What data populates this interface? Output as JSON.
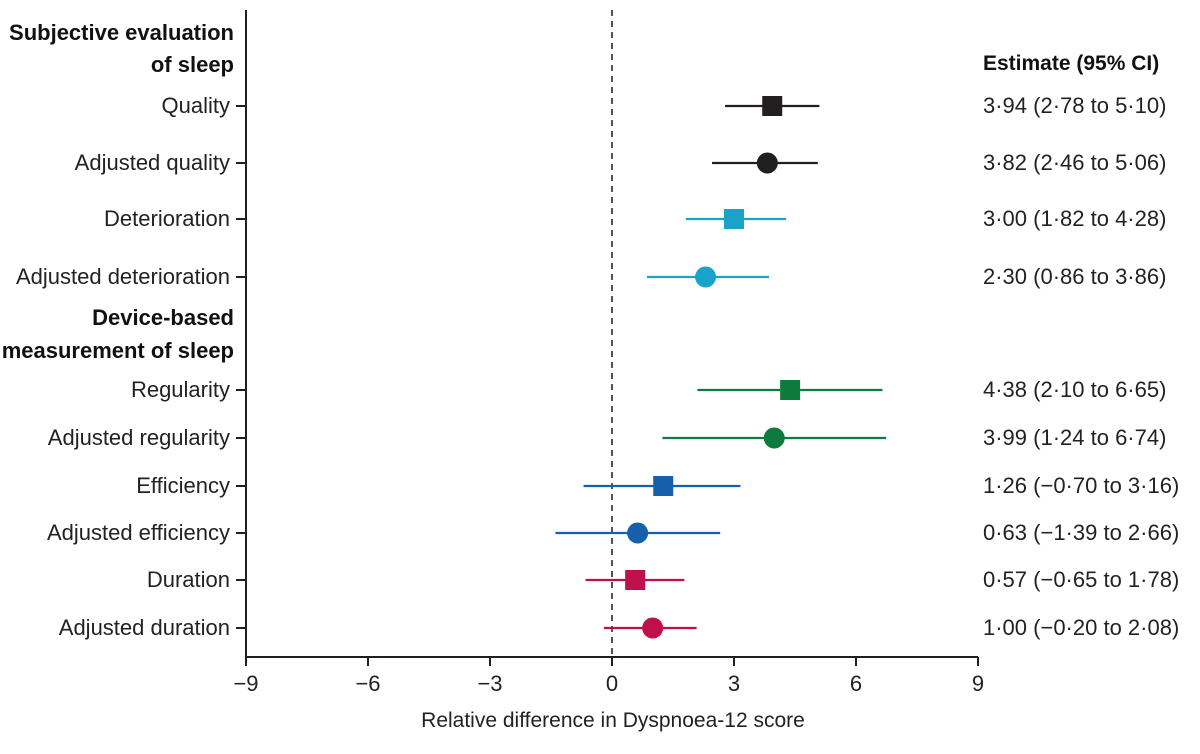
{
  "chart_data": {
    "type": "forest",
    "xlabel": "Relative difference in Dyspnoea-12 score",
    "xlim": [
      -9,
      9
    ],
    "xticks": [
      -9,
      -6,
      -3,
      0,
      3,
      6,
      9
    ],
    "xtick_labels": [
      "−9",
      "−6",
      "−3",
      "0",
      "3",
      "6",
      "9"
    ],
    "reference_line": 0,
    "estimate_header": "Estimate (95% CI)",
    "groups": [
      {
        "title_lines": [
          "Subjective evaluation",
          "of sleep"
        ],
        "rows": [
          {
            "label": "Quality",
            "estimate": 3.94,
            "lower": 2.78,
            "upper": 5.1,
            "ci_text": "3·94 (2·78 to 5·10)",
            "marker": "square",
            "color": "#231f20"
          },
          {
            "label": "Adjusted quality",
            "estimate": 3.82,
            "lower": 2.46,
            "upper": 5.06,
            "ci_text": "3·82 (2·46 to 5·06)",
            "marker": "circle",
            "color": "#231f20"
          },
          {
            "label": "Deterioration",
            "estimate": 3.0,
            "lower": 1.82,
            "upper": 4.28,
            "ci_text": "3·00 (1·82 to 4·28)",
            "marker": "square",
            "color": "#1aa3c9"
          },
          {
            "label": "Adjusted deterioration",
            "estimate": 2.3,
            "lower": 0.86,
            "upper": 3.86,
            "ci_text": "2·30 (0·86 to 3·86)",
            "marker": "circle",
            "color": "#1aa3c9"
          }
        ]
      },
      {
        "title_lines": [
          "Device-based",
          "measurement of sleep"
        ],
        "rows": [
          {
            "label": "Regularity",
            "estimate": 4.38,
            "lower": 2.1,
            "upper": 6.65,
            "ci_text": "4·38 (2·10 to 6·65)",
            "marker": "square",
            "color": "#0e7a3c"
          },
          {
            "label": "Adjusted regularity",
            "estimate": 3.99,
            "lower": 1.24,
            "upper": 6.74,
            "ci_text": "3·99 (1·24 to 6·74)",
            "marker": "circle",
            "color": "#0e7a3c"
          },
          {
            "label": "Efficiency",
            "estimate": 1.26,
            "lower": -0.7,
            "upper": 3.16,
            "ci_text": "1·26 (−0·70 to 3·16)",
            "marker": "square",
            "color": "#1560a8"
          },
          {
            "label": "Adjusted efficiency",
            "estimate": 0.63,
            "lower": -1.39,
            "upper": 2.66,
            "ci_text": "0·63 (−1·39 to 2·66)",
            "marker": "circle",
            "color": "#1560a8"
          },
          {
            "label": "Duration",
            "estimate": 0.57,
            "lower": -0.65,
            "upper": 1.78,
            "ci_text": "0·57 (−0·65 to 1·78)",
            "marker": "square",
            "color": "#c0104a"
          },
          {
            "label": "Adjusted duration",
            "estimate": 1.0,
            "lower": -0.2,
            "upper": 2.08,
            "ci_text": "1·00 (−0·20 to 2·08)",
            "marker": "circle",
            "color": "#c0104a"
          }
        ]
      }
    ]
  }
}
